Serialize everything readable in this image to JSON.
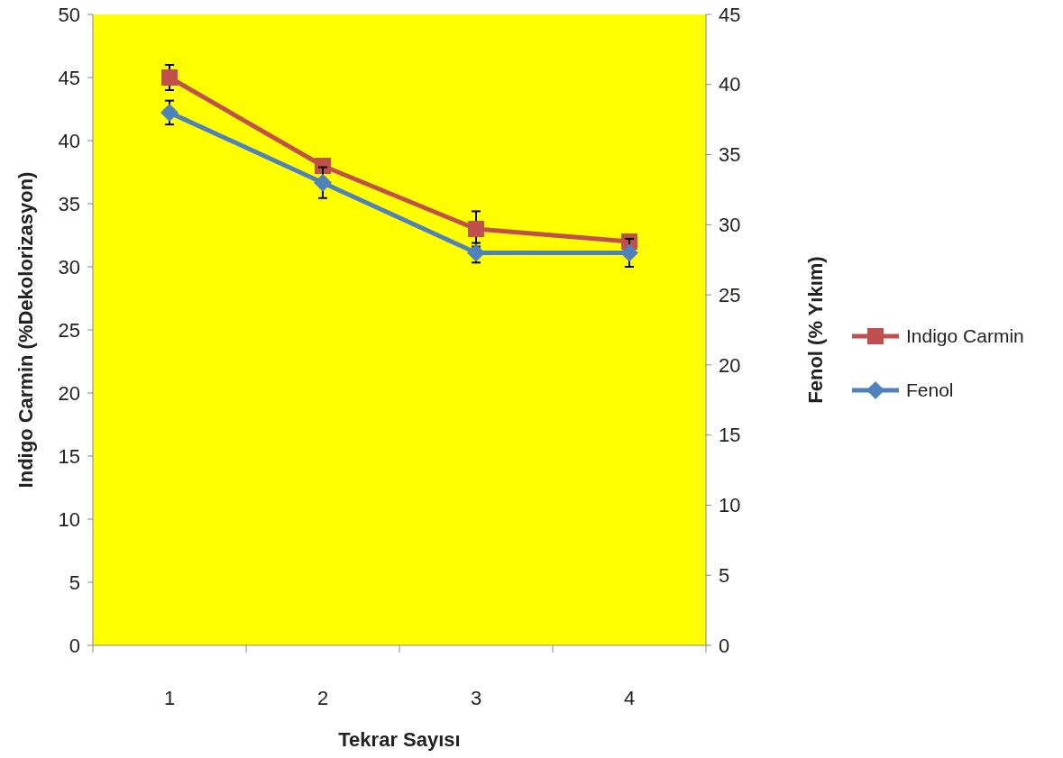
{
  "chart_data": {
    "type": "line",
    "xlabel": "Tekrar Sayısı",
    "ylabel": "Indigo Carmin (%Dekolorizasyon)",
    "y2label": "Fenol (% Yıkım)",
    "categories": [
      "1",
      "2",
      "3",
      "4"
    ],
    "ylim": [
      0,
      50
    ],
    "yticks": [
      0,
      5,
      10,
      15,
      20,
      25,
      30,
      35,
      40,
      45,
      50
    ],
    "y2lim": [
      0,
      45
    ],
    "y2ticks": [
      0,
      5,
      10,
      15,
      20,
      25,
      30,
      35,
      40,
      45
    ],
    "grid": false,
    "legend": "right",
    "series": [
      {
        "name": "Indigo Carmin",
        "color": "#c0504d",
        "marker": "square",
        "values": [
          45,
          38,
          33,
          32
        ],
        "errors": [
          1,
          0.3,
          1.4,
          0.4
        ]
      },
      {
        "name": "Fenol",
        "color": "#4f81bd",
        "marker": "diamond",
        "axis": "y2",
        "values": [
          38,
          33,
          28,
          28
        ],
        "errors": [
          0.85,
          1.1,
          0.7,
          1
        ]
      }
    ]
  }
}
